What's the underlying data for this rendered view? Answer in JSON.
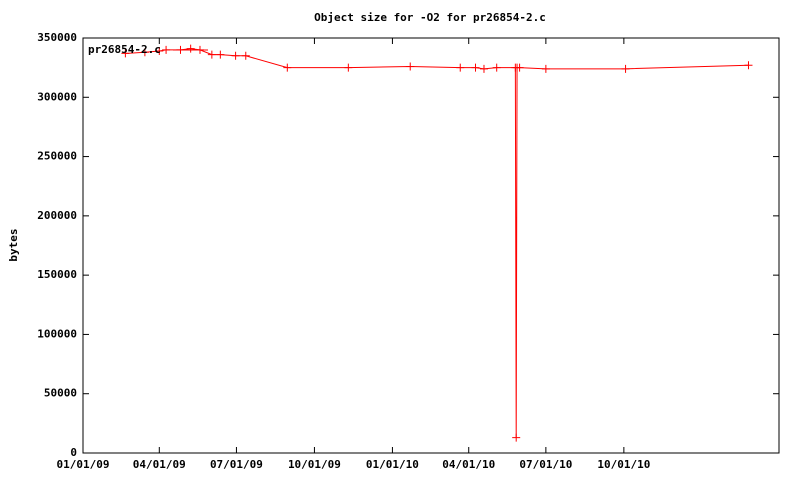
{
  "chart_data": {
    "type": "line",
    "title": "Object size for -O2 for pr26854-2.c",
    "y_label": "bytes",
    "x": [
      "2009-02-20",
      "2009-03-15",
      "2009-04-01",
      "2009-04-09",
      "2009-04-26",
      "2009-05-08",
      "2009-05-19",
      "2009-06-02",
      "2009-06-12",
      "2009-06-30",
      "2009-07-12",
      "2009-08-30",
      "2009-11-10",
      "2010-01-22",
      "2010-03-22",
      "2010-04-09",
      "2010-04-19",
      "2010-05-04",
      "2010-05-26",
      "2010-05-27",
      "2010-05-28",
      "2010-05-31",
      "2010-07-01",
      "2010-10-03",
      "2011-02-25"
    ],
    "series": [
      {
        "name": "pr26854-2.c",
        "color": "#ff0000",
        "values": [
          337000,
          338000,
          339000,
          340000,
          340000,
          341000,
          340000,
          336000,
          336000,
          335000,
          335000,
          325000,
          325000,
          326000,
          325000,
          325000,
          324000,
          325000,
          325000,
          13000,
          325000,
          325000,
          324000,
          324000,
          327000
        ]
      }
    ],
    "xlim": [
      "2009-01-01",
      "2011-04-02"
    ],
    "xticks": [
      {
        "value": "2009-01-01",
        "label": "01/01/09"
      },
      {
        "value": "2009-04-01",
        "label": "04/01/09"
      },
      {
        "value": "2009-07-01",
        "label": "07/01/09"
      },
      {
        "value": "2009-10-01",
        "label": "10/01/09"
      },
      {
        "value": "2010-01-01",
        "label": "01/01/10"
      },
      {
        "value": "2010-04-01",
        "label": "04/01/10"
      },
      {
        "value": "2010-07-01",
        "label": "07/01/10"
      },
      {
        "value": "2010-10-01",
        "label": "10/01/10"
      }
    ],
    "ylim": [
      0,
      350000
    ],
    "yticks": [
      0,
      50000,
      100000,
      150000,
      200000,
      250000,
      300000,
      350000
    ],
    "legend": "top-left"
  }
}
